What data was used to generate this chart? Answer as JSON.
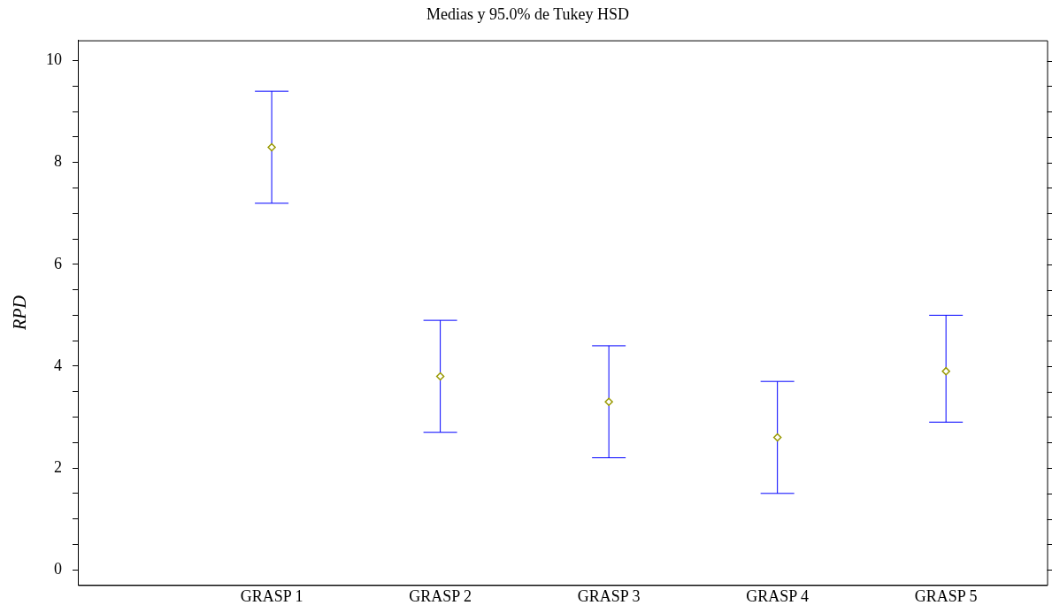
{
  "chart_data": {
    "type": "scatter",
    "title": "Medias y 95.0% de Tukey HSD",
    "ylabel": "RPD",
    "categories": [
      "GRASP 1",
      "GRASP 2",
      "GRASP 3",
      "GRASP 4",
      "GRASP 5"
    ],
    "series": [
      {
        "color": "#999900",
        "values": [
          8.3,
          3.8,
          3.3,
          2.6,
          3.9
        ],
        "errors": [
          [
            7.2,
            9.4
          ],
          [
            2.7,
            4.9
          ],
          [
            2.2,
            4.4
          ],
          [
            1.5,
            3.7
          ],
          [
            2.9,
            5.0
          ]
        ]
      }
    ],
    "ylim": [
      -0.3,
      10.4
    ],
    "yticks": [
      0,
      {
        "value": 0.5,
        "label": null
      },
      {
        "value": 1,
        "label": null
      },
      {
        "value": 1.5,
        "label": null
      },
      2,
      {
        "value": 2.5,
        "label": null
      },
      {
        "value": 3,
        "label": null
      },
      {
        "value": 3.5,
        "label": null
      },
      4,
      {
        "value": 4.5,
        "label": null
      },
      {
        "value": 5,
        "label": null
      },
      {
        "value": 5.5,
        "label": null
      },
      6,
      {
        "value": 6.5,
        "label": null
      },
      {
        "value": 7,
        "label": null
      },
      {
        "value": 7.5,
        "label": null
      },
      8,
      {
        "value": 8.5,
        "label": null
      },
      {
        "value": 9,
        "label": null
      },
      {
        "value": 9.5,
        "label": null
      },
      10
    ],
    "marker": "diamond",
    "grid": false,
    "legend": false
  }
}
